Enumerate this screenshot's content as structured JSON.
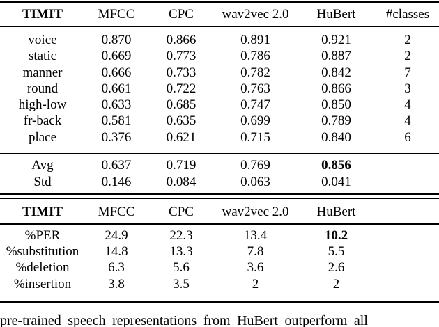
{
  "colors": {
    "text": "#000000",
    "background": "#ffffff",
    "rule": "#000000"
  },
  "table1": {
    "headers": [
      "TIMIT",
      "MFCC",
      "CPC",
      "wav2vec 2.0",
      "HuBert",
      "#classes"
    ],
    "rows": [
      {
        "label": "voice",
        "mfcc": "0.870",
        "cpc": "0.866",
        "w2v": "0.891",
        "hubert": "0.921",
        "classes": "2"
      },
      {
        "label": "static",
        "mfcc": "0.669",
        "cpc": "0.773",
        "w2v": "0.786",
        "hubert": "0.887",
        "classes": "2"
      },
      {
        "label": "manner",
        "mfcc": "0.666",
        "cpc": "0.733",
        "w2v": "0.782",
        "hubert": "0.842",
        "classes": "7"
      },
      {
        "label": "round",
        "mfcc": "0.661",
        "cpc": "0.722",
        "w2v": "0.763",
        "hubert": "0.866",
        "classes": "3"
      },
      {
        "label": "high-low",
        "mfcc": "0.633",
        "cpc": "0.685",
        "w2v": "0.747",
        "hubert": "0.850",
        "classes": "4"
      },
      {
        "label": "fr-back",
        "mfcc": "0.581",
        "cpc": "0.635",
        "w2v": "0.699",
        "hubert": "0.789",
        "classes": "4"
      },
      {
        "label": "place",
        "mfcc": "0.376",
        "cpc": "0.621",
        "w2v": "0.715",
        "hubert": "0.840",
        "classes": "6"
      }
    ],
    "summary": [
      {
        "label": "Avg",
        "mfcc": "0.637",
        "cpc": "0.719",
        "w2v": "0.769",
        "hubert": "0.856"
      },
      {
        "label": "Std",
        "mfcc": "0.146",
        "cpc": "0.084",
        "w2v": "0.063",
        "hubert": "0.041"
      }
    ]
  },
  "table2": {
    "headers": [
      "TIMIT",
      "MFCC",
      "CPC",
      "wav2vec 2.0",
      "HuBert"
    ],
    "rows": [
      {
        "label": "%PER",
        "mfcc": "24.9",
        "cpc": "22.3",
        "w2v": "13.4",
        "hubert": "10.2"
      },
      {
        "label": "%substitution",
        "mfcc": "14.8",
        "cpc": "13.3",
        "w2v": "7.8",
        "hubert": "5.5"
      },
      {
        "label": "%deletion",
        "mfcc": "6.3",
        "cpc": "5.6",
        "w2v": "3.6",
        "hubert": "2.6"
      },
      {
        "label": "%insertion",
        "mfcc": "3.8",
        "cpc": "3.5",
        "w2v": "2",
        "hubert": "2"
      }
    ]
  },
  "caption": {
    "text": "pre-trained speech representations from HuBert outperform all"
  }
}
